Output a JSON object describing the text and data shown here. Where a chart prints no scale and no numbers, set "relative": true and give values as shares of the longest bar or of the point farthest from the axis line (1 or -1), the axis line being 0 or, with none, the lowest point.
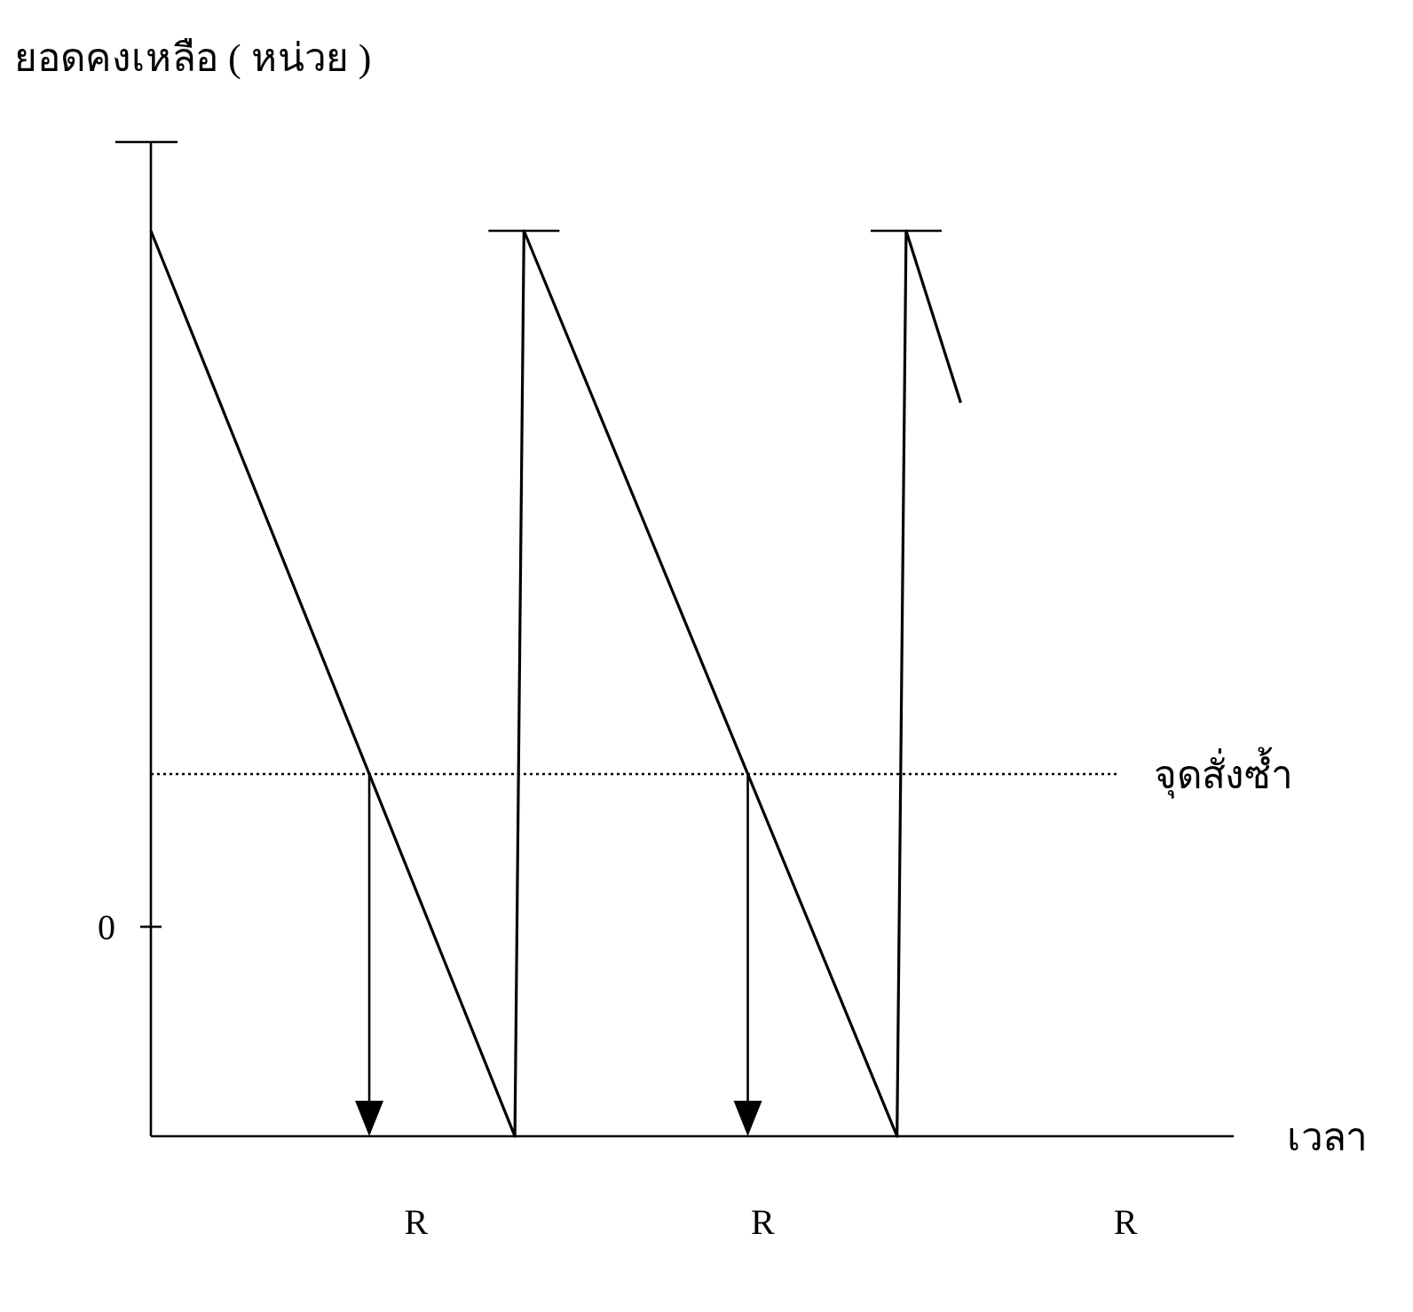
{
  "chart_data": {
    "type": "line",
    "relative": true,
    "xlabel": "เวลา",
    "ylabel": "ยอดคงเหลือ ( หน่วย )",
    "categories": [
      null,
      null,
      null,
      null,
      null,
      null,
      null,
      null,
      null,
      null,
      null,
      null,
      null,
      null,
      null,
      null,
      null,
      null,
      null,
      null,
      null,
      null,
      null,
      null,
      null,
      null,
      null,
      null,
      null,
      null,
      null,
      null,
      null,
      null,
      null,
      null,
      null,
      null,
      null,
      null,
      null,
      null,
      null,
      null,
      null,
      null,
      null,
      null,
      null,
      null,
      null,
      null,
      null,
      null,
      null,
      null,
      null,
      null,
      null,
      null,
      null,
      null,
      null,
      null,
      null,
      null,
      null,
      null,
      null,
      null,
      null,
      null,
      null,
      null,
      null,
      null,
      null,
      null,
      null,
      null,
      null,
      null,
      null,
      null,
      null,
      null,
      null,
      null,
      null,
      null,
      null,
      null,
      null,
      null,
      null,
      null,
      null,
      null,
      null,
      null,
      null,
      null,
      null,
      null,
      null,
      null,
      null,
      null,
      null,
      null,
      null,
      null,
      null,
      null,
      null,
      null,
      null,
      null,
      null,
      null
    ],
    "series": [
      {
        "color": "#000000",
        "values": [
          1,
          null,
          null,
          null,
          null,
          null,
          null,
          null,
          null,
          null,
          null,
          null,
          null,
          null,
          null,
          null,
          null,
          null,
          null,
          null,
          null,
          null,
          null,
          null,
          null,
          null,
          null,
          null,
          null,
          null,
          null,
          null,
          null,
          null,
          null,
          null,
          null,
          null,
          null,
          null,
          0,
          1,
          null,
          null,
          null,
          null,
          null,
          null,
          null,
          null,
          null,
          null,
          null,
          null,
          null,
          null,
          null,
          null,
          null,
          null,
          null,
          null,
          null,
          null,
          null,
          null,
          null,
          null,
          null,
          null,
          null,
          null,
          null,
          null,
          null,
          null,
          null,
          null,
          null,
          null,
          null,
          null,
          0,
          1,
          null,
          null,
          null,
          null,
          null,
          0.81,
          null,
          null,
          null,
          null,
          null,
          null,
          null,
          null,
          null,
          null,
          null,
          null,
          null,
          null,
          null,
          null,
          null,
          null,
          null,
          null,
          null,
          null,
          null,
          null,
          null,
          null,
          null,
          null,
          null,
          null
        ]
      }
    ],
    "ref_lines": [
      {
        "axis": "y",
        "value": 0.4,
        "label": "จุดสั่งซ้ำ",
        "line_style": "dotted"
      }
    ],
    "annotations": [
      "0",
      "R",
      "R",
      "R"
    ]
  }
}
